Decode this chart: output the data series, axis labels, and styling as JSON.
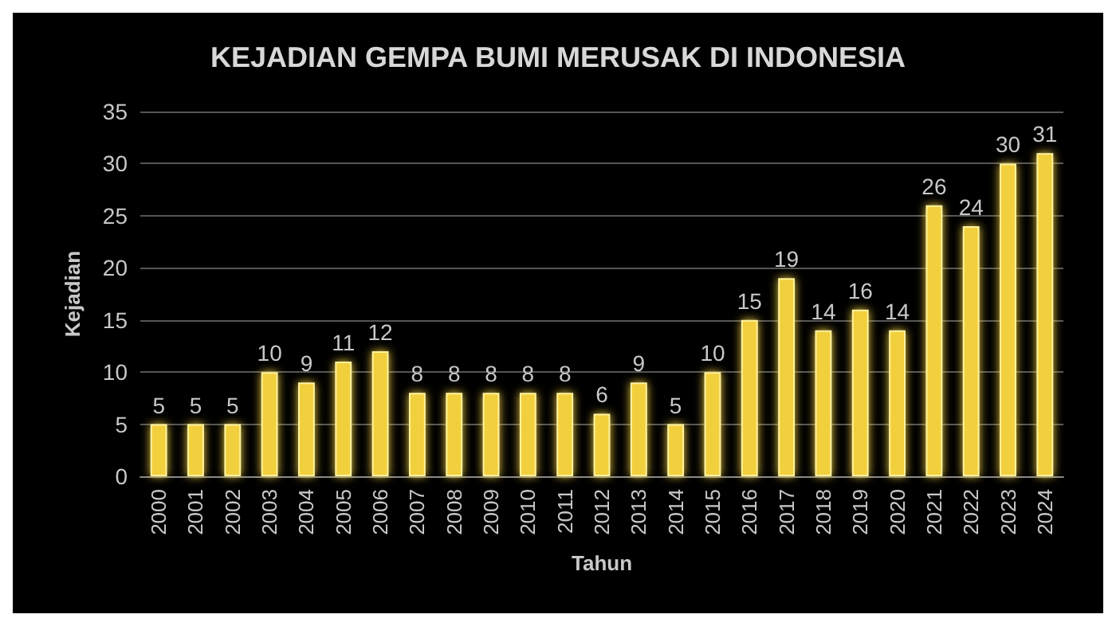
{
  "chart_data": {
    "type": "bar",
    "title": "KEJADIAN GEMPA BUMI MERUSAK DI INDONESIA",
    "xlabel": "Tahun",
    "ylabel": "Kejadian",
    "categories": [
      "2000",
      "2001",
      "2002",
      "2003",
      "2004",
      "2005",
      "2006",
      "2007",
      "2008",
      "2009",
      "2010",
      "2011",
      "2012",
      "2013",
      "2014",
      "2015",
      "2016",
      "2017",
      "2018",
      "2019",
      "2020",
      "2021",
      "2022",
      "2023",
      "2024"
    ],
    "values": [
      5,
      5,
      5,
      10,
      9,
      11,
      12,
      8,
      8,
      8,
      8,
      8,
      6,
      9,
      5,
      10,
      15,
      19,
      14,
      16,
      14,
      26,
      24,
      30,
      31
    ],
    "color": "#f2cf3c",
    "ylim": [
      0,
      35
    ],
    "yticks": [
      0,
      5,
      10,
      15,
      20,
      25,
      30,
      35
    ],
    "grid": "y",
    "data_labels": true
  }
}
